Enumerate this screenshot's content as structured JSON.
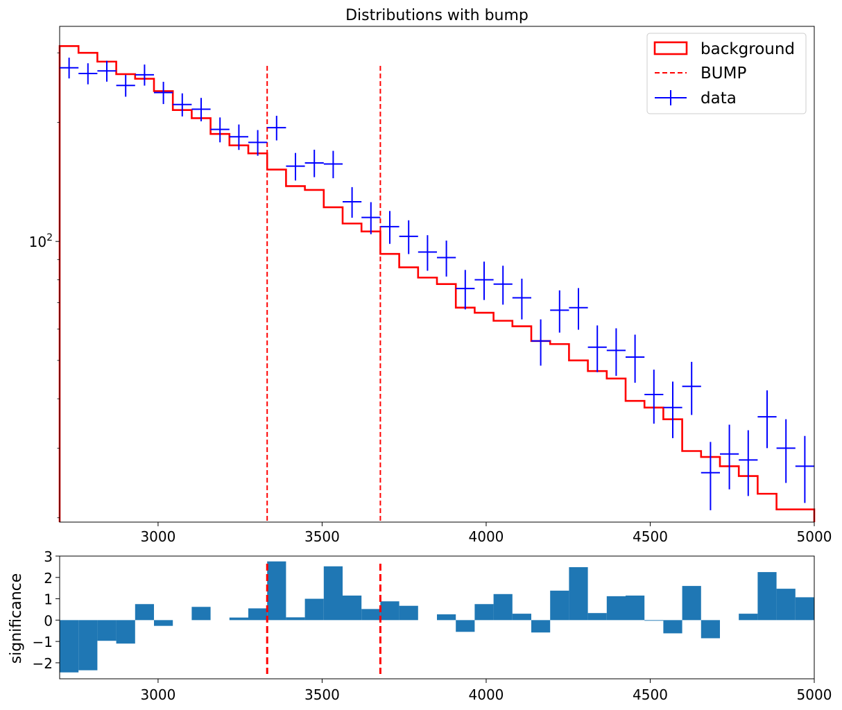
{
  "chart_data": [
    {
      "type": "line",
      "title": "Distributions with bump",
      "xlim": [
        2700,
        5000
      ],
      "ylim": [
        19.5,
        350
      ],
      "yscale": "log",
      "x_ticks": [
        3000,
        3500,
        4000,
        4500,
        5000
      ],
      "y_tick_label": {
        "base": "10",
        "exp": "2",
        "value": 100
      },
      "legend": {
        "placement": "top-right",
        "items": [
          "background",
          "BUMP",
          "data"
        ]
      },
      "colors": {
        "background": "#ff0000",
        "bump": "#ff0000",
        "data": "#0000ff"
      },
      "bin_edges": [
        2700,
        2757.5,
        2815,
        2872.5,
        2930,
        2987.5,
        3045,
        3102.5,
        3160,
        3217.5,
        3275,
        3332.5,
        3390,
        3447.5,
        3505,
        3562.5,
        3620,
        3677.5,
        3735,
        3792.5,
        3850,
        3907.5,
        3965,
        4022.5,
        4080,
        4137.5,
        4195,
        4252.5,
        4310,
        4367.5,
        4425,
        4482.5,
        4540,
        4597.5,
        4655,
        4712.5,
        4770,
        4827.5,
        4885,
        4942.5,
        5000
      ],
      "background": [
        312,
        300,
        285,
        265,
        258,
        240,
        215,
        205,
        187,
        175,
        167,
        152,
        138,
        135,
        122,
        111,
        106,
        93,
        86,
        81,
        78,
        68,
        66,
        63,
        61,
        56,
        55,
        50,
        47,
        45,
        39.5,
        38,
        35.5,
        29.5,
        28.5,
        27,
        25.5,
        23,
        21,
        21
      ],
      "bump_x": [
        3332.5,
        3677.5
      ],
      "series": [
        {
          "name": "data",
          "x": [
            2728.75,
            2786.25,
            2843.75,
            2901.25,
            2958.75,
            3016.25,
            3073.75,
            3131.25,
            3188.75,
            3246.25,
            3303.75,
            3361.25,
            3418.75,
            3476.25,
            3533.75,
            3591.25,
            3648.75,
            3706.25,
            3763.75,
            3821.25,
            3878.75,
            3936.25,
            3993.75,
            4051.25,
            4108.75,
            4166.25,
            4223.75,
            4281.25,
            4338.75,
            4396.25,
            4453.75,
            4511.25,
            4568.75,
            4626.25,
            4683.75,
            4741.25,
            4798.75,
            4856.25,
            4913.75,
            4971.25
          ],
          "y": [
            275,
            266,
            270,
            248,
            264,
            238,
            222,
            216,
            192,
            184,
            178,
            194,
            155,
            158,
            157,
            126,
            115,
            109,
            103,
            94,
            91,
            76,
            80,
            78,
            72,
            56,
            67,
            68,
            54,
            53,
            51,
            41,
            38,
            43,
            26,
            29,
            28,
            36,
            30,
            27
          ],
          "yerr": [
            16.6,
            16.3,
            16.4,
            15.7,
            16.2,
            15.4,
            14.9,
            14.7,
            13.9,
            13.6,
            13.3,
            13.9,
            12.4,
            12.6,
            12.5,
            11.2,
            10.7,
            10.4,
            10.1,
            9.7,
            9.5,
            8.7,
            8.9,
            8.8,
            8.5,
            7.5,
            8.2,
            8.2,
            7.3,
            7.3,
            7.1,
            6.4,
            6.2,
            6.6,
            5.1,
            5.4,
            5.3,
            6.0,
            5.5,
            5.2
          ]
        }
      ]
    },
    {
      "type": "bar",
      "ylabel": "significance",
      "xlim": [
        2700,
        5000
      ],
      "ylim": [
        -2.75,
        3
      ],
      "x_ticks": [
        3000,
        3500,
        4000,
        4500,
        5000
      ],
      "y_ticks": [
        3,
        2,
        1,
        0,
        -1,
        -2
      ],
      "y_tick_labels": [
        "3",
        "2",
        "1",
        "0",
        "−1",
        "−2"
      ],
      "bar_color": "#1f77b4",
      "bump_x": [
        3332.5,
        3677.5
      ],
      "bin_edges": [
        2700,
        2757.5,
        2815,
        2872.5,
        2930,
        2987.5,
        3045,
        3102.5,
        3160,
        3217.5,
        3275,
        3332.5,
        3390,
        3447.5,
        3505,
        3562.5,
        3620,
        3677.5,
        3735,
        3792.5,
        3850,
        3907.5,
        3965,
        4022.5,
        4080,
        4137.5,
        4195,
        4252.5,
        4310,
        4367.5,
        4425,
        4482.5,
        4540,
        4597.5,
        4655,
        4712.5,
        4770,
        4827.5,
        4885,
        4942.5,
        5000
      ],
      "values": [
        -2.45,
        -2.35,
        -0.97,
        -1.1,
        0.75,
        -0.27,
        0,
        0.62,
        0,
        0.12,
        0.55,
        2.75,
        0.13,
        1.0,
        2.52,
        1.15,
        0.52,
        0.88,
        0.67,
        0,
        0.27,
        -0.55,
        0.75,
        1.22,
        0.3,
        -0.58,
        1.38,
        2.48,
        0.33,
        1.12,
        1.15,
        -0.03,
        -0.62,
        1.6,
        -0.85,
        0,
        0.3,
        2.25,
        1.47,
        1.07
      ]
    }
  ]
}
